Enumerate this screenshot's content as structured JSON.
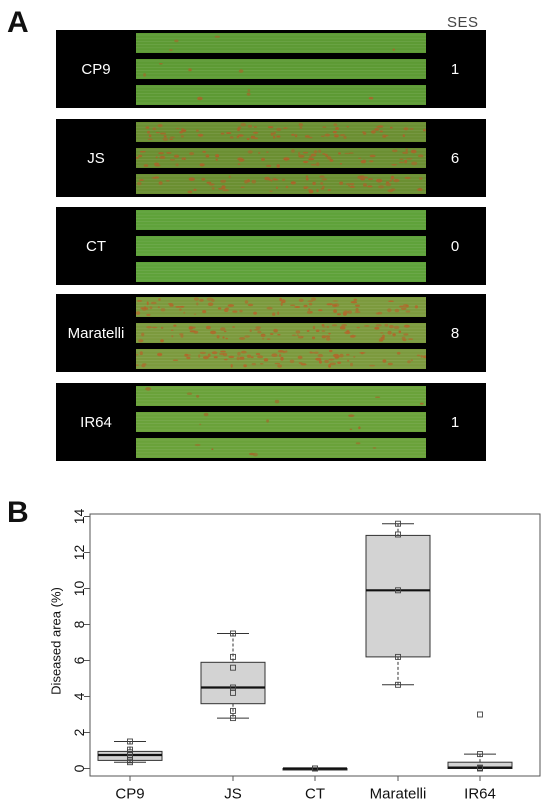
{
  "panel_a": {
    "letter": "A",
    "score_header": "SES",
    "varieties": [
      {
        "name": "CP9",
        "ses": "1",
        "leaf_base": "#5d9a34",
        "lesion_color": "#a06a2a",
        "lesion_density": 0.05
      },
      {
        "name": "JS",
        "ses": "6",
        "leaf_base": "#6b8f32",
        "lesion_color": "#a9652a",
        "lesion_density": 0.9
      },
      {
        "name": "CT",
        "ses": "0",
        "leaf_base": "#5fa23a",
        "lesion_color": "#a06a2a",
        "lesion_density": 0.0
      },
      {
        "name": "Maratelli",
        "ses": "8",
        "leaf_base": "#7c9a3e",
        "lesion_color": "#b0692c",
        "lesion_density": 1.0
      },
      {
        "name": "IR64",
        "ses": "1",
        "leaf_base": "#6aa23a",
        "lesion_color": "#a06a2a",
        "lesion_density": 0.08
      }
    ]
  },
  "panel_b": {
    "letter": "B"
  },
  "chart_data": {
    "type": "box",
    "title": "",
    "xlabel": "",
    "ylabel": "Diseased area (%)",
    "ylim": [
      -0.6,
      14.5
    ],
    "yticks": [
      0,
      2,
      4,
      6,
      8,
      10,
      12,
      14
    ],
    "categories": [
      "CP9",
      "JS",
      "CT",
      "Maratelli",
      "IR64"
    ],
    "boxes": [
      {
        "name": "CP9",
        "min": 0.35,
        "q1": 0.45,
        "median": 0.75,
        "q3": 0.95,
        "max": 1.5,
        "points": [
          0.35,
          0.45,
          0.6,
          0.75,
          0.9,
          1.05,
          1.5
        ]
      },
      {
        "name": "JS",
        "min": 2.8,
        "q1": 3.6,
        "median": 4.5,
        "q3": 5.9,
        "max": 7.5,
        "points": [
          2.8,
          3.2,
          4.2,
          4.5,
          5.6,
          6.2,
          7.5
        ]
      },
      {
        "name": "CT",
        "min": 0.0,
        "q1": 0.0,
        "median": 0.0,
        "q3": 0.0,
        "max": 0.0,
        "points": [
          0.0,
          0.0,
          0.0
        ]
      },
      {
        "name": "Maratelli",
        "min": 4.65,
        "q1": 6.2,
        "median": 9.9,
        "q3": 12.95,
        "max": 13.6,
        "points": [
          4.65,
          6.2,
          9.9,
          13.0,
          13.6
        ]
      },
      {
        "name": "IR64",
        "min": 0.0,
        "q1": 0.0,
        "median": 0.05,
        "q3": 0.35,
        "max": 0.8,
        "points": [
          0.0,
          0.05,
          0.8,
          3.0
        ]
      }
    ],
    "colors": {
      "box_fill": "#d3d3d3",
      "box_stroke": "#333333",
      "median": "#111111"
    },
    "grid": false
  }
}
